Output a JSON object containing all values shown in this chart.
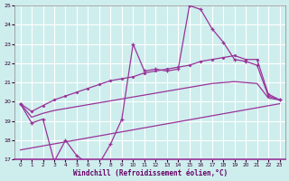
{
  "xlabel": "Windchill (Refroidissement éolien,°C)",
  "xlim": [
    -0.5,
    23.5
  ],
  "ylim": [
    17,
    25
  ],
  "xticks": [
    0,
    1,
    2,
    3,
    4,
    5,
    6,
    7,
    8,
    9,
    10,
    11,
    12,
    13,
    14,
    15,
    16,
    17,
    18,
    19,
    20,
    21,
    22,
    23
  ],
  "yticks": [
    17,
    18,
    19,
    20,
    21,
    22,
    23,
    24,
    25
  ],
  "bg_color": "#ceeeed",
  "grid_color": "#b0d8d8",
  "line_color": "#993399",
  "series": {
    "jagged_x": [
      0,
      1,
      2,
      3,
      4,
      5,
      6,
      7,
      8,
      9,
      10,
      11,
      12,
      13,
      14,
      15,
      16,
      17,
      18,
      19,
      20,
      21,
      22,
      23
    ],
    "jagged_y": [
      19.9,
      18.9,
      19.1,
      16.9,
      18.0,
      17.2,
      16.8,
      16.8,
      17.8,
      19.1,
      23.0,
      21.6,
      21.7,
      21.6,
      21.7,
      25.0,
      24.8,
      23.8,
      23.1,
      22.2,
      22.1,
      21.9,
      20.3,
      20.1
    ],
    "upper_trend_x": [
      0,
      1,
      2,
      3,
      4,
      5,
      6,
      7,
      8,
      9,
      10,
      11,
      12,
      13,
      14,
      15,
      16,
      17,
      18,
      19,
      20,
      21,
      22,
      23
    ],
    "upper_trend_y": [
      19.9,
      19.5,
      19.8,
      20.1,
      20.3,
      20.5,
      20.7,
      20.9,
      21.1,
      21.2,
      21.3,
      21.5,
      21.6,
      21.7,
      21.8,
      21.9,
      22.1,
      22.2,
      22.3,
      22.4,
      22.2,
      22.2,
      20.4,
      20.1
    ],
    "mid_trend_x": [
      0,
      1,
      2,
      3,
      4,
      5,
      6,
      7,
      8,
      9,
      10,
      11,
      12,
      13,
      14,
      15,
      16,
      17,
      18,
      19,
      20,
      21,
      22,
      23
    ],
    "mid_trend_y": [
      19.9,
      19.2,
      19.4,
      19.55,
      19.65,
      19.75,
      19.85,
      19.95,
      20.05,
      20.15,
      20.25,
      20.35,
      20.45,
      20.55,
      20.65,
      20.75,
      20.85,
      20.95,
      21.0,
      21.05,
      21.0,
      20.95,
      20.2,
      20.1
    ],
    "lower_trend_x": [
      0,
      23
    ],
    "lower_trend_y": [
      17.5,
      19.9
    ]
  }
}
